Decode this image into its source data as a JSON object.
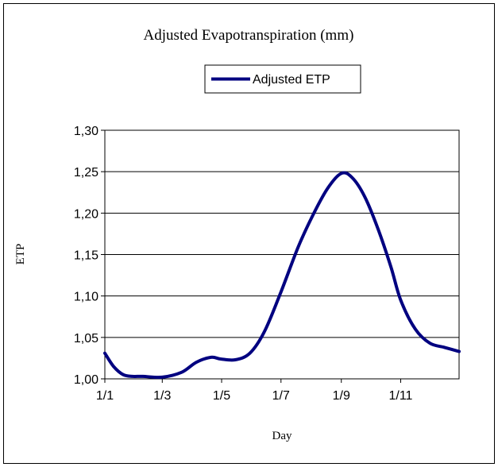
{
  "chart_data": {
    "type": "line",
    "title": "Adjusted Evapotranspiration (mm)",
    "xlabel": "Day",
    "ylabel": "ETP",
    "ylim": [
      1.0,
      1.3
    ],
    "y_ticks": [
      "1,00",
      "1,05",
      "1,10",
      "1,15",
      "1,20",
      "1,25",
      "1,30"
    ],
    "x_ticks": [
      "1/1",
      "1/3",
      "1/5",
      "1/7",
      "1/9",
      "1/11"
    ],
    "x_tick_days": [
      1,
      60,
      121,
      182,
      244,
      305
    ],
    "xlim": [
      1,
      365
    ],
    "grid": "horizontal",
    "legend_position": "top",
    "line_color": "#000080",
    "series": [
      {
        "name": "Adjusted ETP",
        "x": [
          1,
          10,
          20,
          30,
          40,
          60,
          80,
          95,
          110,
          120,
          135,
          150,
          165,
          182,
          200,
          215,
          230,
          244,
          255,
          268,
          282,
          295,
          305,
          320,
          335,
          350,
          365
        ],
        "y": [
          1.031,
          1.015,
          1.005,
          1.003,
          1.003,
          1.002,
          1.008,
          1.02,
          1.026,
          1.024,
          1.023,
          1.031,
          1.057,
          1.105,
          1.16,
          1.198,
          1.23,
          1.248,
          1.243,
          1.22,
          1.18,
          1.135,
          1.095,
          1.06,
          1.043,
          1.038,
          1.033
        ]
      }
    ]
  }
}
